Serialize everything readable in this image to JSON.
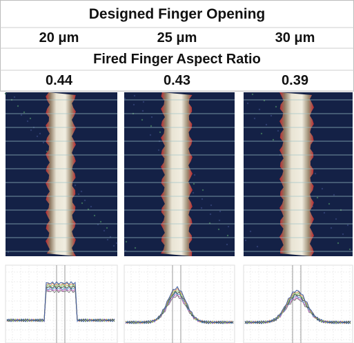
{
  "table": {
    "title": "Designed Finger Opening",
    "openings": [
      "20 μm",
      "25 μm",
      "30 μm"
    ],
    "subtitle": "Fired Finger Aspect Ratio",
    "ratios": [
      0.44,
      0.43,
      0.39
    ]
  }
}
